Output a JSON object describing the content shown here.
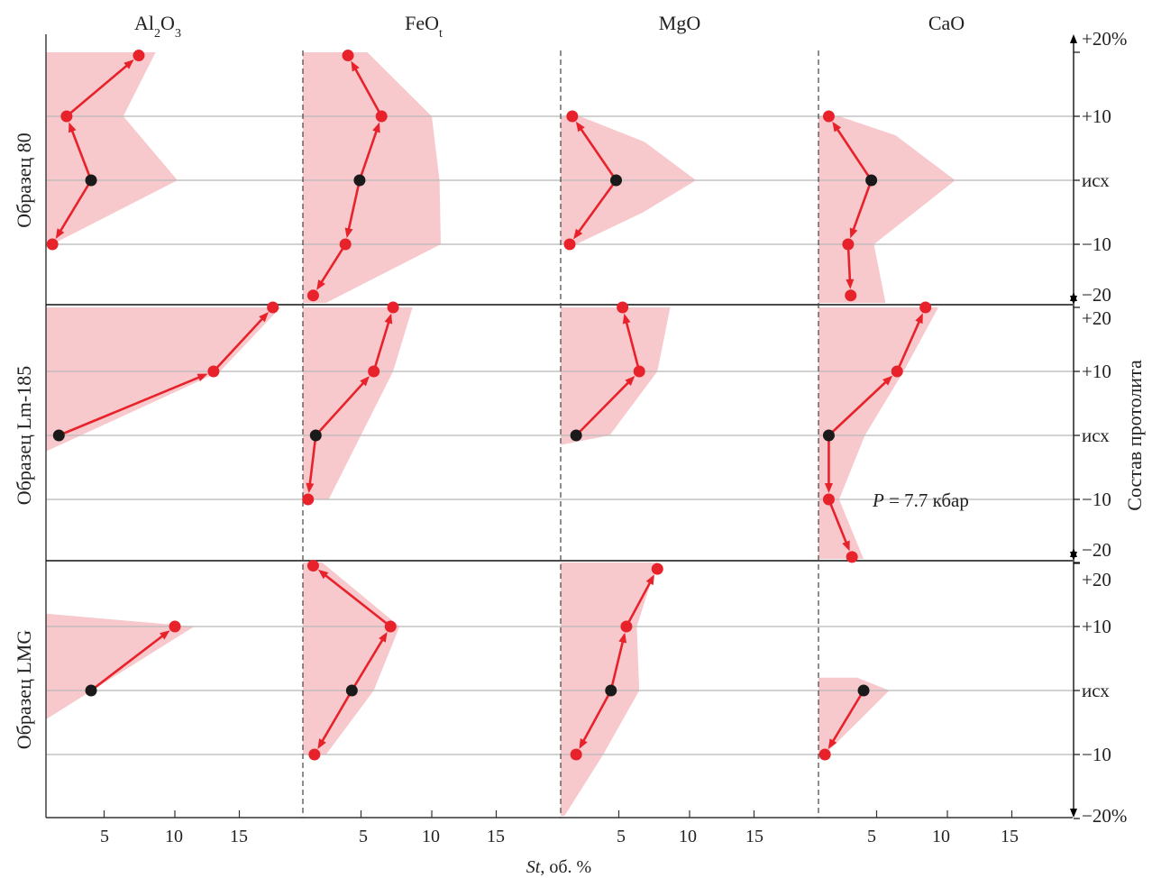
{
  "colors": {
    "band": "#f7c9cc",
    "line": "#e8222b",
    "point_red": "#e8222b",
    "point_black": "#1a1a1a",
    "grid": "#b8b8b8",
    "axis": "#333333"
  },
  "headers": [
    "Al",
    "FeO",
    "MgO",
    "CaO"
  ],
  "header_parts": {
    "al": [
      "Al",
      "2",
      "O",
      "3"
    ],
    "fe": [
      "FeO",
      "t"
    ]
  },
  "row_labels": [
    "Образец 80",
    "Образец Lm-185",
    "Образец LMG"
  ],
  "right_axis_title": "Состав протолита",
  "pressure_label": {
    "italic": "P",
    "text": " = 7.7 кбар"
  },
  "x_axis": {
    "title_italic": "St",
    "title_rest": ", об. %",
    "ticks": [
      5,
      10,
      15
    ],
    "tick_labels": [
      "5",
      "10",
      "15"
    ],
    "range": [
      0,
      20
    ]
  },
  "right_labels": {
    "row1": [
      "+20%",
      "+10",
      "исх",
      "−10",
      "−20"
    ],
    "row2": [
      "+20",
      "+10",
      "исх",
      "−10",
      "−20"
    ],
    "row3": [
      "+20",
      "+10",
      "исх",
      "−10",
      "−20%"
    ]
  },
  "chart_data": {
    "type": "line",
    "y_axis": {
      "label": "Состав протолита",
      "levels": [
        "+20%",
        "+10",
        "исх",
        "−10",
        "−20%"
      ],
      "values": [
        20,
        10,
        0,
        -10,
        -20
      ]
    },
    "x_axis": {
      "label": "St, об. %",
      "range": [
        0,
        20
      ]
    },
    "panels": [
      {
        "row": "Образец 80",
        "oxide": "Al2O3",
        "points": [
          [
            7.2,
            19.5
          ],
          [
            1.6,
            10
          ],
          [
            3.5,
            0
          ],
          [
            0.5,
            -10
          ]
        ],
        "band": [
          [
            0,
            20
          ],
          [
            8.5,
            20
          ],
          [
            6,
            10
          ],
          [
            10.2,
            0
          ],
          [
            0.5,
            -10
          ],
          [
            0,
            -10
          ]
        ]
      },
      {
        "row": "Образец 80",
        "oxide": "FeOt",
        "points": [
          [
            3.5,
            19.5
          ],
          [
            6.1,
            10
          ],
          [
            4.4,
            0
          ],
          [
            3.3,
            -10
          ],
          [
            0.8,
            -18
          ]
        ],
        "band": [
          [
            0,
            20
          ],
          [
            5,
            20
          ],
          [
            10,
            10
          ],
          [
            10.6,
            0
          ],
          [
            10.7,
            -10
          ],
          [
            1.8,
            -19.5
          ],
          [
            0,
            -19.5
          ]
        ]
      },
      {
        "row": "Образец 80",
        "oxide": "MgO",
        "points": [
          [
            0.9,
            10
          ],
          [
            4.3,
            0
          ],
          [
            0.7,
            -10
          ]
        ],
        "band": [
          [
            0,
            10
          ],
          [
            1.5,
            10
          ],
          [
            6.5,
            6
          ],
          [
            10.5,
            0
          ],
          [
            6.4,
            -5
          ],
          [
            1.2,
            -10
          ],
          [
            0,
            -10
          ]
        ]
      },
      {
        "row": "Образец 80",
        "oxide": "CaO",
        "points": [
          [
            0.8,
            10
          ],
          [
            4.1,
            0
          ],
          [
            2.3,
            -10
          ],
          [
            2.5,
            -18
          ]
        ],
        "band": [
          [
            0,
            10
          ],
          [
            1.6,
            10
          ],
          [
            6,
            7
          ],
          [
            10.6,
            0
          ],
          [
            4.3,
            -10
          ],
          [
            5.2,
            -19.5
          ],
          [
            0,
            -19.5
          ]
        ]
      },
      {
        "row": "Образец Lm-185",
        "oxide": "Al2O3",
        "points": [
          [
            17.6,
            20
          ],
          [
            13,
            10
          ],
          [
            1,
            0
          ]
        ],
        "band": [
          [
            0,
            20
          ],
          [
            18.2,
            20
          ],
          [
            13.5,
            10
          ],
          [
            0,
            -2.5
          ]
        ]
      },
      {
        "row": "Образец Lm-185",
        "oxide": "FeOt",
        "points": [
          [
            7,
            20
          ],
          [
            5.5,
            10
          ],
          [
            1,
            0
          ],
          [
            0.4,
            -10
          ]
        ],
        "band": [
          [
            0,
            20
          ],
          [
            8.5,
            20
          ],
          [
            7,
            10
          ],
          [
            2,
            -10
          ],
          [
            0,
            -10
          ]
        ]
      },
      {
        "row": "Образец Lm-185",
        "oxide": "MgO",
        "points": [
          [
            4.8,
            20
          ],
          [
            6.1,
            10
          ],
          [
            1.2,
            0
          ]
        ],
        "band": [
          [
            0,
            20
          ],
          [
            8.5,
            20
          ],
          [
            7.5,
            10
          ],
          [
            3.8,
            0
          ],
          [
            0,
            -1.5
          ]
        ]
      },
      {
        "row": "Образец Lm-185",
        "oxide": "CaO",
        "points": [
          [
            8.3,
            20
          ],
          [
            6.1,
            10
          ],
          [
            0.8,
            0
          ],
          [
            0.8,
            -10
          ],
          [
            2.6,
            -19
          ]
        ],
        "band": [
          [
            0,
            20
          ],
          [
            9.3,
            20
          ],
          [
            6.6,
            10
          ],
          [
            3.6,
            0
          ],
          [
            1.6,
            -10
          ],
          [
            3.5,
            -19.5
          ],
          [
            0,
            -19.5
          ]
        ]
      },
      {
        "row": "Образец LMG",
        "oxide": "Al2O3",
        "points": [
          [
            10,
            10
          ],
          [
            3.5,
            0
          ]
        ],
        "band": [
          [
            0,
            12
          ],
          [
            11.5,
            10
          ],
          [
            0,
            -4.5
          ]
        ]
      },
      {
        "row": "Образец LMG",
        "oxide": "FeOt",
        "points": [
          [
            0.8,
            19.5
          ],
          [
            6.8,
            10
          ],
          [
            3.8,
            0
          ],
          [
            0.9,
            -10
          ]
        ],
        "band": [
          [
            0,
            20
          ],
          [
            1.5,
            20
          ],
          [
            7.5,
            10
          ],
          [
            5.5,
            0
          ],
          [
            1.8,
            -10
          ],
          [
            0,
            -10
          ]
        ]
      },
      {
        "row": "Образец LMG",
        "oxide": "MgO",
        "points": [
          [
            7.5,
            19
          ],
          [
            5.1,
            10
          ],
          [
            3.9,
            0
          ],
          [
            1.2,
            -10
          ]
        ],
        "band": [
          [
            0,
            20
          ],
          [
            7.5,
            20
          ],
          [
            5.9,
            10
          ],
          [
            6.1,
            0
          ],
          [
            3.3,
            -10
          ],
          [
            0.3,
            -20
          ],
          [
            0,
            -20
          ]
        ]
      },
      {
        "row": "Образец LMG",
        "oxide": "CaO",
        "points": [
          [
            3.5,
            0
          ],
          [
            0.5,
            -10
          ]
        ],
        "band": [
          [
            0,
            2
          ],
          [
            3,
            2
          ],
          [
            5.5,
            0
          ],
          [
            0.5,
            -10
          ],
          [
            0,
            -10
          ]
        ]
      }
    ]
  }
}
